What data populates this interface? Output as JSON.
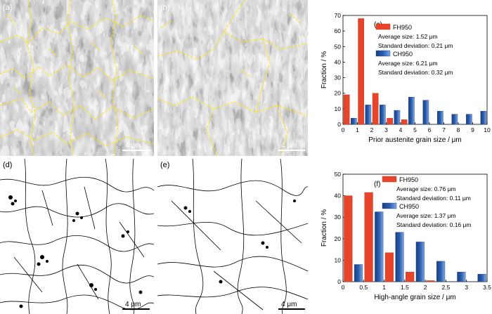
{
  "panels": {
    "a": {
      "label": "(a)",
      "scale": "4 μm"
    },
    "b": {
      "label": "(b)",
      "scale": "4 μm"
    },
    "d": {
      "label": "(d)",
      "scale": "4 μm"
    },
    "e": {
      "label": "(e)",
      "scale": "4 μm"
    }
  },
  "colors": {
    "fh950": "#e8442a",
    "ch950": "#2a5db0",
    "grain_boundary_pag": "#ffe600",
    "grain_boundary_hagb": "#000000"
  },
  "chart_data": [
    {
      "id": "c",
      "panel_label": "(c)",
      "type": "bar",
      "xlabel": "Prior austenite grain size / μm",
      "ylabel": "Fraction / %",
      "xlim": [
        0,
        10
      ],
      "ylim": [
        0,
        70
      ],
      "xticks": [
        "0",
        "1",
        "2",
        "3",
        "4",
        "5",
        "6",
        "7",
        "8",
        "9",
        "10"
      ],
      "yticks": [
        "0",
        "10",
        "20",
        "30",
        "40",
        "50",
        "60",
        "70"
      ],
      "series": [
        {
          "name": "FH950",
          "x": [
            0.25,
            1.25,
            2.25,
            3.25,
            4.25
          ],
          "values": [
            19,
            68,
            20,
            4,
            3
          ]
        },
        {
          "name": "CH950",
          "x": [
            0.75,
            1.75,
            2.75,
            3.75,
            4.75,
            5.75,
            6.75,
            7.75,
            8.75,
            9.75
          ],
          "values": [
            4,
            12.5,
            12.5,
            9,
            17.5,
            15.5,
            8.5,
            6.5,
            6.5,
            8.5
          ]
        }
      ],
      "legend": [
        {
          "name": "FH950",
          "average": "Average size: 1.52 μm",
          "sd": "Standard deviation: 0.21 μm"
        },
        {
          "name": "CH950",
          "average": "Average size: 6.21 μm",
          "sd": "Standard deviation: 0.32 μm"
        }
      ]
    },
    {
      "id": "f",
      "panel_label": "(f)",
      "type": "bar",
      "xlabel": "High-angle grain size / μm",
      "ylabel": "Fraction / %",
      "xlim": [
        0,
        3.5
      ],
      "ylim": [
        0,
        50
      ],
      "xticks": [
        "0",
        "0.5",
        "1",
        "1.5",
        "2",
        "2.5",
        "3",
        "3.5"
      ],
      "yticks": [
        "0",
        "10",
        "20",
        "30",
        "40",
        "50"
      ],
      "series": [
        {
          "name": "FH950",
          "x": [
            0.125,
            0.625,
            1.125,
            1.625,
            2.125
          ],
          "values": [
            40,
            41.5,
            13.5,
            4.5,
            0.5
          ]
        },
        {
          "name": "CH950",
          "x": [
            0.375,
            0.875,
            1.375,
            1.875,
            2.375,
            2.875,
            3.375
          ],
          "values": [
            8,
            32.5,
            23,
            18.5,
            9.5,
            4.5,
            3.5
          ]
        }
      ],
      "legend": [
        {
          "name": "FH950",
          "average": "Average size: 0.76 μm",
          "sd": "Standard deviation: 0.11 μm"
        },
        {
          "name": "CH950",
          "average": "Average size: 1.37 μm",
          "sd": "Standard deviation: 0.16 μm"
        }
      ]
    }
  ]
}
